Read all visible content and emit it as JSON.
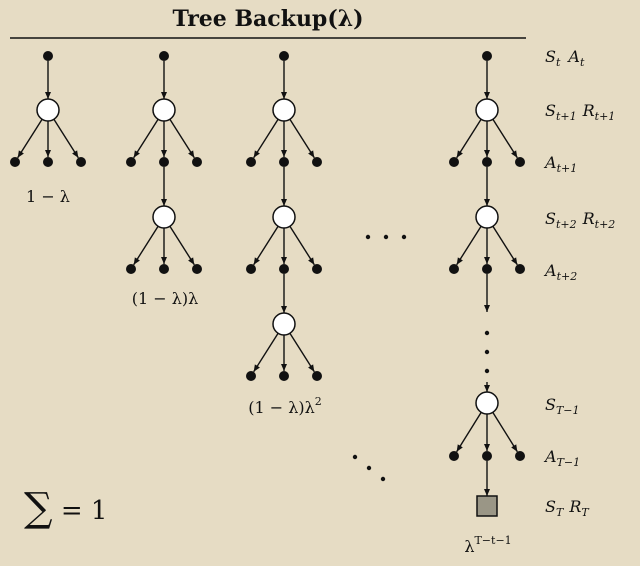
{
  "title": "Tree Backup(λ)",
  "row_labels": [
    {
      "main": "S",
      "sub": "t",
      "main2": "A",
      "sub2": "t"
    },
    {
      "main": "S",
      "sub": "t+1",
      "main2": "R",
      "sub2": "t+1"
    },
    {
      "main": "A",
      "sub": "t+1",
      "main2": "",
      "sub2": ""
    },
    {
      "main": "S",
      "sub": "t+2",
      "main2": "R",
      "sub2": "t+2"
    },
    {
      "main": "A",
      "sub": "t+2",
      "main2": "",
      "sub2": ""
    },
    {
      "main": "S",
      "sub": "T−1",
      "main2": "",
      "sub2": ""
    },
    {
      "main": "A",
      "sub": "T−1",
      "main2": "",
      "sub2": ""
    },
    {
      "main": "S",
      "sub": "T",
      "main2": "R",
      "sub2": "T"
    }
  ],
  "weights": [
    {
      "base": "1 − λ",
      "sup": ""
    },
    {
      "base": "(1 − λ)λ",
      "sup": ""
    },
    {
      "base": "(1 − λ)λ",
      "sup": "2"
    },
    {
      "base": "λ",
      "sup": "T−t−1"
    }
  ],
  "sum": {
    "sym": "∑",
    "rest": " = 1"
  }
}
